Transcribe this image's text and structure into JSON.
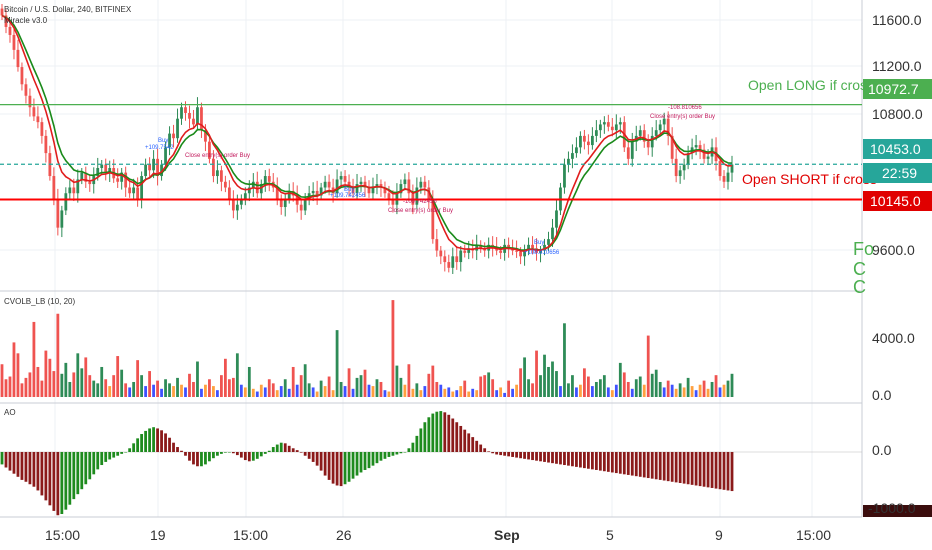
{
  "header": {
    "title": "Bitcoin / U.S. Dollar, 240, BITFINEX",
    "indicator": "Miracle v3.0"
  },
  "colors": {
    "up": "#2e8b57",
    "down": "#ef5350",
    "ma_fast": "#e11d1d",
    "ma_slow": "#1a8a1a",
    "long_line": "#4caf50",
    "short_line": "#ff0000",
    "price_line": "#26a69a",
    "ao_up": "#1e8b1e",
    "ao_down": "#8b1a1a",
    "vol_blue": "#3f51ff",
    "vol_orange": "#ffa040",
    "annot": "#c2185b"
  },
  "price_axis": {
    "ticks": [
      "11600.0",
      "11200.0",
      "10800.0",
      "9600.0"
    ],
    "long_level": "10972.7",
    "current": "10453.0",
    "countdown": "22:59",
    "short_level": "10145.0",
    "cut_labels": [
      "Fo",
      "C",
      "C"
    ]
  },
  "lines": {
    "long_label": "Open LONG if cross",
    "short_label": "Open SHORT if cross"
  },
  "annotations": {
    "buy_1": "Buy",
    "buy_1_val": "+109.7542",
    "close_1": "Close entry(s) order Buy",
    "buy_2": "Buy",
    "buy_2_val": "+109.742456",
    "close_2_val": "-109.742456",
    "close_2": "Close entry(s) order Buy",
    "buy_3": "Buy",
    "buy_3_val": "+108.810656",
    "close_3_val": "-108.810656",
    "close_3": "Close entry(s) order Buy"
  },
  "volume": {
    "title": "CVOLB_LB (10, 20)",
    "ticks": [
      "4000.0",
      "0.0"
    ]
  },
  "ao": {
    "title": "AO",
    "ticks": [
      "0.0",
      "-1000.0"
    ]
  },
  "time_axis": [
    "15:00",
    "19",
    "15:00",
    "26",
    "Sep",
    "5",
    "9",
    "15:00"
  ],
  "chart_data": {
    "type": "candlestick",
    "title": "Bitcoin / U.S. Dollar, 240, BITFINEX",
    "y_range": [
      9400,
      11850
    ],
    "levels": {
      "open_long": 10972.7,
      "open_short": 10145.0,
      "last": 10453.0
    },
    "closes": [
      11750,
      11650,
      11580,
      11450,
      11300,
      11150,
      11050,
      10950,
      10870,
      10820,
      10700,
      10550,
      10350,
      10150,
      9900,
      10050,
      10200,
      10250,
      10200,
      10320,
      10380,
      10300,
      10280,
      10350,
      10420,
      10450,
      10380,
      10420,
      10330,
      10300,
      10380,
      10250,
      10200,
      10250,
      10150,
      10350,
      10450,
      10400,
      10500,
      10350,
      10450,
      10600,
      10720,
      10680,
      10850,
      10950,
      10900,
      10850,
      10800,
      10950,
      10750,
      10650,
      10500,
      10350,
      10400,
      10300,
      10250,
      10150,
      10050,
      10100,
      10150,
      10200,
      10250,
      10300,
      10200,
      10280,
      10350,
      10300,
      10250,
      10150,
      10080,
      10150,
      10220,
      10180,
      10100,
      10050,
      10150,
      10200,
      10220,
      10180,
      10250,
      10300,
      10250,
      10200,
      10320,
      10350,
      10300,
      10250,
      10200,
      10280,
      10300,
      10250,
      10200,
      10260,
      10280,
      10250,
      10200,
      10150,
      10100,
      10200,
      10280,
      10320,
      10200,
      10100,
      10250,
      10300,
      10250,
      10150,
      9800,
      9700,
      9650,
      9600,
      9550,
      9650,
      9600,
      9700,
      9680,
      9720,
      9700,
      9750,
      9720,
      9700,
      9750,
      9730,
      9700,
      9680,
      9750,
      9720,
      9700,
      9690,
      9650,
      9700,
      9750,
      9720,
      9680,
      9700,
      9750,
      9800,
      9900,
      10050,
      10250,
      10450,
      10500,
      10550,
      10600,
      10700,
      10650,
      10620,
      10700,
      10750,
      10800,
      10820,
      10780,
      10750,
      10800,
      10820,
      10600,
      10500,
      10650,
      10700,
      10750,
      10650,
      10600,
      10700,
      10750,
      10800,
      10850,
      10700,
      10500,
      10350,
      10400,
      10450,
      10550,
      10600,
      10620,
      10580,
      10500,
      10520,
      10600,
      10480,
      10350,
      10300,
      10380,
      10450
    ],
    "volume": [
      2400,
      1300,
      1500,
      4000,
      3200,
      1000,
      1400,
      1800,
      5500,
      2200,
      1200,
      3400,
      2800,
      1900,
      6100,
      1700,
      2500,
      1100,
      1800,
      3200,
      2100,
      2900,
      1600,
      1200,
      1000,
      2200,
      1300,
      800,
      1600,
      3000,
      2000,
      1000,
      700,
      1100,
      2700,
      1600,
      800,
      1900,
      900,
      1200,
      600,
      1300,
      1000,
      800,
      1400,
      900,
      700,
      1700,
      1100,
      2600,
      600,
      900,
      1300,
      800,
      500,
      1600,
      2800,
      1300,
      1400,
      3200,
      900,
      700,
      2200,
      600,
      400,
      900,
      700,
      1300,
      1000,
      500,
      800,
      1300,
      600,
      2200,
      900,
      1600,
      2400,
      1000,
      700,
      400,
      1200,
      800,
      1500,
      500,
      4900,
      1100,
      800,
      2100,
      600,
      1400,
      1600,
      2000,
      900,
      800,
      1300,
      1100,
      500,
      400,
      7100,
      2300,
      1400,
      900,
      2400,
      600,
      1000,
      500,
      800,
      1700,
      2300,
      1100,
      900,
      600,
      700,
      400,
      500,
      800,
      1200,
      400,
      600,
      500,
      1500,
      1600,
      1800,
      1300,
      500,
      700,
      300,
      1200,
      600,
      900,
      2100,
      2900,
      1300,
      1000,
      3400,
      1600,
      3100,
      2200,
      2600,
      1900,
      800,
      5400,
      1000,
      1600,
      700,
      900,
      2100,
      1500,
      800,
      1100,
      1300,
      1600,
      700,
      500,
      900,
      2500,
      1800,
      1100,
      600,
      1300,
      1500,
      900,
      4500,
      1700,
      2000,
      1100,
      700,
      1200,
      900,
      600,
      1000,
      700,
      1400,
      800,
      500,
      900,
      1200,
      600,
      1100,
      1600,
      700,
      900,
      1200,
      1700
    ],
    "ao": [
      -200,
      -250,
      -300,
      -350,
      -400,
      -450,
      -480,
      -520,
      -560,
      -620,
      -700,
      -780,
      -860,
      -950,
      -1020,
      -1000,
      -930,
      -850,
      -760,
      -680,
      -600,
      -520,
      -440,
      -360,
      -280,
      -210,
      -160,
      -120,
      -90,
      -60,
      -30,
      0,
      60,
      140,
      220,
      290,
      340,
      380,
      400,
      380,
      350,
      300,
      230,
      150,
      80,
      20,
      -60,
      -140,
      -200,
      -230,
      -230,
      -200,
      -150,
      -100,
      -60,
      -30,
      -10,
      0,
      -20,
      -50,
      -90,
      -130,
      -150,
      -140,
      -110,
      -70,
      -30,
      20,
      80,
      120,
      150,
      140,
      100,
      60,
      30,
      -10,
      -60,
      -110,
      -160,
      -220,
      -300,
      -380,
      -450,
      -510,
      -540,
      -550,
      -520,
      -480,
      -430,
      -380,
      -330,
      -290,
      -260,
      -220,
      -180,
      -140,
      -110,
      -80,
      -60,
      -40,
      -20,
      0,
      60,
      150,
      260,
      380,
      480,
      560,
      620,
      650,
      660,
      640,
      600,
      540,
      480,
      420,
      360,
      300,
      240,
      180,
      120,
      60,
      10,
      -20,
      -40,
      -50,
      -60,
      -70,
      -80,
      -90,
      -100,
      -110,
      -120,
      -130,
      -140,
      -150,
      -160,
      -170,
      -180,
      -190,
      -200,
      -210,
      -220,
      -230,
      -240,
      -250,
      -260,
      -270,
      -280,
      -290,
      -300,
      -310,
      -320,
      -330,
      -340,
      -350,
      -360,
      -370,
      -380,
      -390,
      -400,
      -410,
      -420,
      -430,
      -440,
      -450,
      -460,
      -470,
      -480,
      -490,
      -500,
      -510,
      -520,
      -530,
      -540,
      -550,
      -560,
      -570,
      -580,
      -590,
      -600,
      -610,
      -620,
      -630
    ]
  }
}
